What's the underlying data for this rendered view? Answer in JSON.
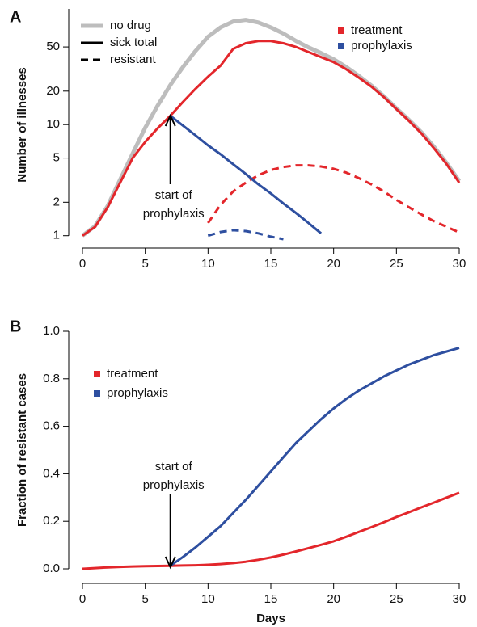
{
  "chart_data": [
    {
      "type": "line",
      "panel_label": "A",
      "ylabel": "Number of illnesses",
      "log_y": true,
      "x": [
        0,
        1,
        2,
        3,
        4,
        5,
        6,
        7,
        8,
        9,
        10,
        11,
        12,
        13,
        14,
        15,
        16,
        17,
        18,
        19,
        20,
        21,
        22,
        23,
        24,
        25,
        26,
        27,
        28,
        29,
        30
      ],
      "xlim": [
        0,
        30
      ],
      "xticks": [
        0,
        5,
        10,
        15,
        20,
        25,
        30
      ],
      "ylim": [
        0.9,
        110
      ],
      "yticks": [
        1,
        2,
        5,
        10,
        20,
        50
      ],
      "line_styles": [
        {
          "name": "no drug",
          "color": "#bdbdbd",
          "values": [
            1,
            1.22,
            1.85,
            3.2,
            5.5,
            9.4,
            14.9,
            22.7,
            33,
            46,
            61.7,
            75,
            84.7,
            87.6,
            83,
            75,
            66,
            56.7,
            49.5,
            44,
            38.7,
            33,
            27.5,
            22.5,
            18,
            14,
            11,
            8.5,
            6.3,
            4.5,
            3.1
          ]
        },
        {
          "name": "sick total",
          "color": "#000000"
        },
        {
          "name": "resistant",
          "color": "#000000",
          "dashed": true
        }
      ],
      "series": [
        {
          "name": "treatment",
          "color": "#e3262b",
          "values": [
            1,
            1.2,
            1.8,
            3.0,
            5.0,
            7.0,
            9.3,
            12,
            16,
            21,
            27,
            34,
            48,
            54,
            56.5,
            56.5,
            54,
            50,
            45,
            40.5,
            36.5,
            31.5,
            26.5,
            22,
            17.7,
            13.8,
            10.8,
            8.3,
            6.1,
            4.4,
            3.0
          ],
          "resistant": [
            null,
            null,
            null,
            null,
            null,
            null,
            null,
            null,
            null,
            null,
            1.3,
            1.9,
            2.5,
            3.0,
            3.5,
            3.9,
            4.15,
            4.3,
            4.3,
            4.2,
            4.0,
            3.7,
            3.3,
            2.9,
            2.5,
            2.1,
            1.8,
            1.55,
            1.35,
            1.2,
            1.07
          ]
        },
        {
          "name": "prophylaxis",
          "color": "#2e4fa0",
          "values": [
            null,
            null,
            null,
            null,
            null,
            null,
            null,
            12,
            9.8,
            8.0,
            6.5,
            5.4,
            4.4,
            3.6,
            2.9,
            2.4,
            1.95,
            1.6,
            1.3,
            1.05,
            null,
            null,
            null,
            null,
            null,
            null,
            null,
            null,
            null,
            null,
            null
          ],
          "resistant": [
            null,
            null,
            null,
            null,
            null,
            null,
            null,
            null,
            null,
            null,
            1.0,
            1.08,
            1.12,
            1.1,
            1.05,
            0.98,
            0.93,
            null,
            null,
            null,
            null,
            null,
            null,
            null,
            null,
            null,
            null,
            null,
            null,
            null,
            null
          ]
        }
      ],
      "annotation": [
        "start of",
        "prophylaxis"
      ]
    },
    {
      "type": "line",
      "panel_label": "B",
      "ylabel": "Fraction of resistant cases",
      "xlabel": "Days",
      "x": [
        0,
        1,
        2,
        3,
        4,
        5,
        6,
        7,
        8,
        9,
        10,
        11,
        12,
        13,
        14,
        15,
        16,
        17,
        18,
        19,
        20,
        21,
        22,
        23,
        24,
        25,
        26,
        27,
        28,
        29,
        30
      ],
      "xlim": [
        0,
        30
      ],
      "xticks": [
        0,
        5,
        10,
        15,
        20,
        25,
        30
      ],
      "ylim": [
        0,
        1
      ],
      "yticks": [
        {
          "value": 0,
          "label": "0.0"
        },
        0.2,
        0.4,
        0.6,
        0.8,
        {
          "value": 1,
          "label": "1.0"
        }
      ],
      "series": [
        {
          "name": "treatment",
          "color": "#e3262b",
          "values": [
            0,
            0.003,
            0.006,
            0.008,
            0.01,
            0.011,
            0.012,
            0.013,
            0.014,
            0.015,
            0.017,
            0.02,
            0.024,
            0.03,
            0.038,
            0.048,
            0.06,
            0.073,
            0.087,
            0.101,
            0.116,
            0.135,
            0.155,
            0.175,
            0.196,
            0.218,
            0.238,
            0.259,
            0.279,
            0.3,
            0.32
          ]
        },
        {
          "name": "prophylaxis",
          "color": "#2e4fa0",
          "values": [
            null,
            null,
            null,
            null,
            null,
            null,
            null,
            0.013,
            0.05,
            0.09,
            0.135,
            0.18,
            0.235,
            0.29,
            0.35,
            0.41,
            0.47,
            0.53,
            0.58,
            0.63,
            0.675,
            0.715,
            0.75,
            0.78,
            0.81,
            0.835,
            0.86,
            0.88,
            0.9,
            0.915,
            0.93
          ]
        }
      ],
      "annotation": [
        "start of",
        "prophylaxis"
      ]
    }
  ]
}
